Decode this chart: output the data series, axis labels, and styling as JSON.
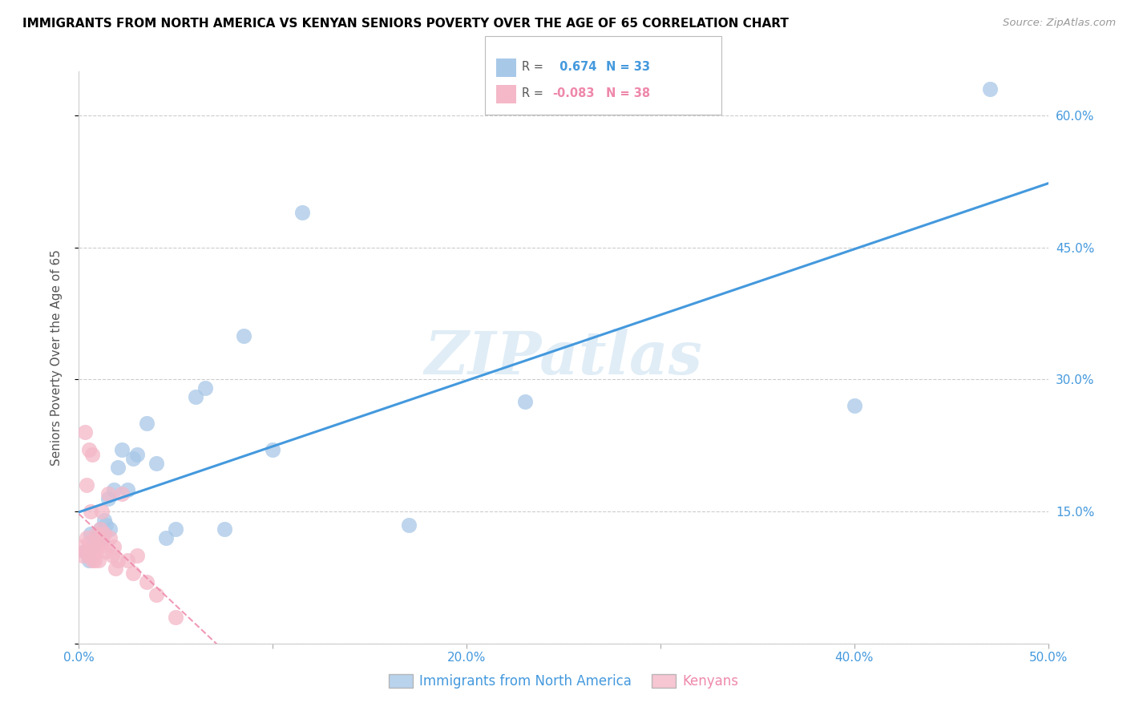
{
  "title": "IMMIGRANTS FROM NORTH AMERICA VS KENYAN SENIORS POVERTY OVER THE AGE OF 65 CORRELATION CHART",
  "source": "Source: ZipAtlas.com",
  "ylabel_label": "Seniors Poverty Over the Age of 65",
  "legend_label1": "Immigrants from North America",
  "legend_label2": "Kenyans",
  "R_blue": 0.674,
  "N_blue": 33,
  "R_pink": -0.083,
  "N_pink": 38,
  "xlim": [
    0.0,
    0.5
  ],
  "ylim": [
    0.0,
    0.65
  ],
  "xticks": [
    0.0,
    0.1,
    0.2,
    0.3,
    0.4,
    0.5
  ],
  "xtick_labels": [
    "0.0%",
    "",
    "20.0%",
    "",
    "40.0%",
    "50.0%"
  ],
  "yticks": [
    0.0,
    0.15,
    0.3,
    0.45,
    0.6
  ],
  "ytick_labels_right": [
    "",
    "15.0%",
    "30.0%",
    "45.0%",
    "60.0%"
  ],
  "blue_color": "#a8c8e8",
  "pink_color": "#f4b8c8",
  "blue_line_color": "#4499dd",
  "pink_line_color": "#ee88aa",
  "watermark": "ZIPatlas",
  "blue_scatter_x": [
    0.003,
    0.005,
    0.006,
    0.007,
    0.008,
    0.009,
    0.01,
    0.011,
    0.012,
    0.013,
    0.014,
    0.015,
    0.016,
    0.018,
    0.02,
    0.022,
    0.025,
    0.028,
    0.03,
    0.035,
    0.04,
    0.045,
    0.05,
    0.06,
    0.065,
    0.075,
    0.085,
    0.1,
    0.115,
    0.17,
    0.23,
    0.4,
    0.47
  ],
  "blue_scatter_y": [
    0.105,
    0.095,
    0.125,
    0.11,
    0.115,
    0.12,
    0.12,
    0.13,
    0.12,
    0.14,
    0.135,
    0.165,
    0.13,
    0.175,
    0.2,
    0.22,
    0.175,
    0.21,
    0.215,
    0.25,
    0.205,
    0.12,
    0.13,
    0.28,
    0.29,
    0.13,
    0.35,
    0.22,
    0.49,
    0.135,
    0.275,
    0.27,
    0.63
  ],
  "pink_scatter_x": [
    0.001,
    0.002,
    0.003,
    0.003,
    0.004,
    0.004,
    0.005,
    0.005,
    0.005,
    0.006,
    0.006,
    0.007,
    0.007,
    0.008,
    0.008,
    0.009,
    0.009,
    0.01,
    0.01,
    0.011,
    0.011,
    0.012,
    0.012,
    0.013,
    0.014,
    0.015,
    0.016,
    0.017,
    0.018,
    0.019,
    0.02,
    0.022,
    0.025,
    0.028,
    0.03,
    0.035,
    0.04,
    0.05
  ],
  "pink_scatter_y": [
    0.11,
    0.1,
    0.105,
    0.24,
    0.18,
    0.12,
    0.1,
    0.115,
    0.22,
    0.1,
    0.15,
    0.095,
    0.215,
    0.105,
    0.095,
    0.11,
    0.125,
    0.12,
    0.095,
    0.13,
    0.11,
    0.15,
    0.115,
    0.125,
    0.105,
    0.17,
    0.12,
    0.1,
    0.11,
    0.085,
    0.095,
    0.17,
    0.095,
    0.08,
    0.1,
    0.07,
    0.055,
    0.03
  ]
}
